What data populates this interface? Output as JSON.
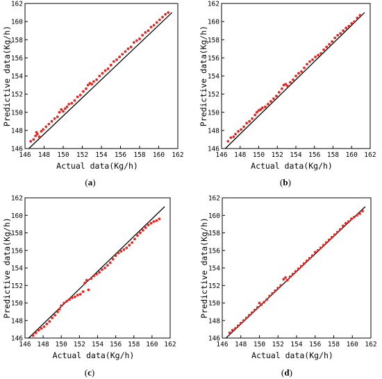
{
  "chart_data": [
    {
      "panel": "(a)",
      "type": "scatter",
      "xlabel": "Actual data(Kg/h)",
      "ylabel": "Predictive data(Kg/h)",
      "xlim": [
        146,
        162
      ],
      "ylim": [
        146,
        162
      ],
      "xticks": [
        146,
        148,
        150,
        152,
        154,
        156,
        158,
        160,
        162
      ],
      "yticks": [
        146,
        148,
        150,
        152,
        154,
        156,
        158,
        160,
        162
      ],
      "reference_line": [
        [
          146.4,
          146.0
        ],
        [
          161.4,
          161.0
        ]
      ],
      "point_color": "#e8251f",
      "series": [
        {
          "x": [
            146.6,
            146.9,
            147.1,
            147.3,
            147.5,
            147.2,
            147.7,
            147.9,
            148.2,
            148.5,
            148.8,
            149.1,
            149.4,
            149.6,
            149.8,
            150.0,
            150.2,
            150.4,
            150.6,
            150.9,
            151.2,
            151.5,
            151.8,
            152.1,
            152.4,
            152.6,
            152.8,
            153.0,
            153.2,
            153.5,
            153.8,
            154.1,
            154.4,
            154.7,
            155.0,
            155.3,
            155.6,
            155.9,
            156.2,
            156.5,
            156.8,
            157.1,
            157.4,
            157.7,
            158.0,
            158.3,
            158.6,
            158.9,
            159.2,
            159.5,
            159.8,
            160.1,
            160.4,
            160.7,
            161.0
          ],
          "y": [
            146.8,
            147.0,
            147.4,
            147.6,
            147.3,
            147.8,
            147.9,
            148.1,
            148.4,
            148.7,
            149.0,
            149.3,
            149.5,
            150.0,
            150.3,
            150.1,
            150.4,
            150.6,
            150.9,
            151.0,
            151.3,
            151.7,
            151.9,
            152.3,
            152.6,
            153.0,
            153.2,
            153.1,
            153.4,
            153.6,
            154.0,
            154.3,
            154.6,
            154.8,
            155.2,
            155.6,
            155.8,
            156.1,
            156.4,
            156.7,
            157.0,
            157.2,
            157.7,
            157.9,
            158.1,
            158.5,
            158.8,
            159.0,
            159.4,
            159.6,
            159.9,
            160.2,
            160.5,
            160.8,
            161.0
          ]
        }
      ]
    },
    {
      "panel": "(b)",
      "type": "scatter",
      "xlabel": "Actual data(Kg/h)",
      "ylabel": "Predictive data(Kg/h)",
      "xlim": [
        146,
        162
      ],
      "ylim": [
        146,
        162
      ],
      "xticks": [
        146,
        148,
        150,
        152,
        154,
        156,
        158,
        160,
        162
      ],
      "yticks": [
        146,
        148,
        150,
        152,
        154,
        156,
        158,
        160,
        162
      ],
      "reference_line": [
        [
          146.4,
          146.0
        ],
        [
          161.4,
          161.0
        ]
      ],
      "point_color": "#e8251f",
      "series": [
        {
          "x": [
            146.7,
            147.0,
            147.3,
            147.5,
            147.8,
            148.1,
            148.4,
            148.7,
            149.0,
            149.3,
            149.6,
            149.8,
            150.0,
            150.2,
            150.4,
            150.7,
            151.0,
            151.3,
            151.6,
            151.9,
            152.2,
            152.5,
            152.7,
            152.9,
            153.1,
            153.4,
            153.7,
            154.0,
            154.3,
            154.6,
            154.9,
            155.2,
            155.5,
            155.8,
            156.1,
            156.4,
            156.7,
            157.0,
            157.3,
            157.6,
            157.9,
            158.2,
            158.5,
            158.8,
            159.1,
            159.4,
            159.7,
            160.0,
            160.3,
            160.6,
            160.9
          ],
          "y": [
            146.8,
            147.2,
            147.3,
            147.6,
            147.9,
            148.1,
            148.4,
            148.8,
            149.0,
            149.3,
            149.7,
            150.0,
            150.2,
            150.3,
            150.5,
            150.6,
            150.9,
            151.2,
            151.5,
            151.8,
            152.2,
            152.6,
            153.0,
            153.1,
            152.9,
            153.3,
            153.6,
            154.0,
            154.3,
            154.5,
            154.9,
            155.3,
            155.6,
            155.8,
            156.1,
            156.3,
            156.5,
            156.9,
            157.2,
            157.5,
            157.8,
            158.2,
            158.5,
            158.7,
            159.0,
            159.3,
            159.5,
            159.8,
            160.0,
            160.4,
            160.7
          ]
        }
      ]
    },
    {
      "panel": "(c)",
      "type": "scatter",
      "xlabel": "Actual data(Kg/h)",
      "ylabel": "Predictive data(Kg/h)",
      "xlim": [
        146,
        162
      ],
      "ylim": [
        146,
        162
      ],
      "xticks": [
        146,
        148,
        150,
        152,
        154,
        156,
        158,
        160,
        162
      ],
      "yticks": [
        146,
        148,
        150,
        152,
        154,
        156,
        158,
        160,
        162
      ],
      "reference_line": [
        [
          146.4,
          146.0
        ],
        [
          161.4,
          161.0
        ]
      ],
      "point_color": "#e8251f",
      "series": [
        {
          "x": [
            146.9,
            147.2,
            147.5,
            147.8,
            148.1,
            148.4,
            148.7,
            149.0,
            149.3,
            149.6,
            149.8,
            150.0,
            150.3,
            150.6,
            150.9,
            151.2,
            151.5,
            151.8,
            152.1,
            152.4,
            152.6,
            152.8,
            153.0,
            153.3,
            153.6,
            153.9,
            154.2,
            154.5,
            154.8,
            155.1,
            155.4,
            155.7,
            156.0,
            156.3,
            156.6,
            156.9,
            157.2,
            157.5,
            157.8,
            158.1,
            158.4,
            158.7,
            159.0,
            159.3,
            159.6,
            159.9,
            160.2,
            160.5,
            160.8
          ],
          "y": [
            146.3,
            146.6,
            146.9,
            147.1,
            147.3,
            147.6,
            147.9,
            148.3,
            148.6,
            149.0,
            149.3,
            149.7,
            150.0,
            150.2,
            150.4,
            150.6,
            150.7,
            150.9,
            151.0,
            151.3,
            152.3,
            152.6,
            151.5,
            152.8,
            153.1,
            153.3,
            153.5,
            153.8,
            154.0,
            154.3,
            154.6,
            155.0,
            155.4,
            155.7,
            155.9,
            156.1,
            156.3,
            156.6,
            156.9,
            157.3,
            157.7,
            158.0,
            158.3,
            158.6,
            158.9,
            159.1,
            159.3,
            159.4,
            159.6
          ]
        }
      ]
    },
    {
      "panel": "(d)",
      "type": "scatter",
      "xlabel": "Actual data(Kg/h)",
      "ylabel": "Predictive data(Kg/h)",
      "xlim": [
        146,
        162
      ],
      "ylim": [
        146,
        162
      ],
      "xticks": [
        146,
        148,
        150,
        152,
        154,
        156,
        158,
        160,
        162
      ],
      "yticks": [
        146,
        148,
        150,
        152,
        154,
        156,
        158,
        160,
        162
      ],
      "reference_line": [
        [
          146.4,
          146.0
        ],
        [
          161.4,
          161.0
        ]
      ],
      "point_color": "#e8251f",
      "series": [
        {
          "x": [
            146.8,
            147.1,
            147.4,
            147.7,
            148.0,
            148.3,
            148.6,
            148.9,
            149.2,
            149.5,
            149.8,
            150.0,
            150.2,
            150.5,
            150.8,
            151.1,
            151.4,
            151.7,
            152.0,
            152.3,
            152.6,
            152.8,
            153.0,
            153.3,
            153.6,
            153.9,
            154.2,
            154.5,
            154.8,
            155.1,
            155.4,
            155.7,
            156.0,
            156.3,
            156.6,
            156.9,
            157.2,
            157.5,
            157.8,
            158.1,
            158.4,
            158.7,
            159.0,
            159.3,
            159.6,
            159.9,
            160.2,
            160.5,
            160.8,
            161.1
          ],
          "y": [
            146.6,
            146.9,
            147.1,
            147.4,
            147.7,
            148.0,
            148.3,
            148.6,
            148.9,
            149.2,
            149.5,
            150.0,
            149.8,
            150.1,
            150.4,
            150.8,
            151.1,
            151.4,
            151.7,
            152.0,
            152.7,
            152.9,
            152.6,
            153.0,
            153.3,
            153.6,
            153.9,
            154.2,
            154.5,
            154.8,
            155.1,
            155.4,
            155.8,
            156.0,
            156.3,
            156.6,
            156.9,
            157.2,
            157.5,
            157.8,
            158.1,
            158.4,
            158.8,
            159.1,
            159.3,
            159.6,
            159.8,
            160.0,
            160.2,
            160.5
          ]
        }
      ]
    }
  ]
}
